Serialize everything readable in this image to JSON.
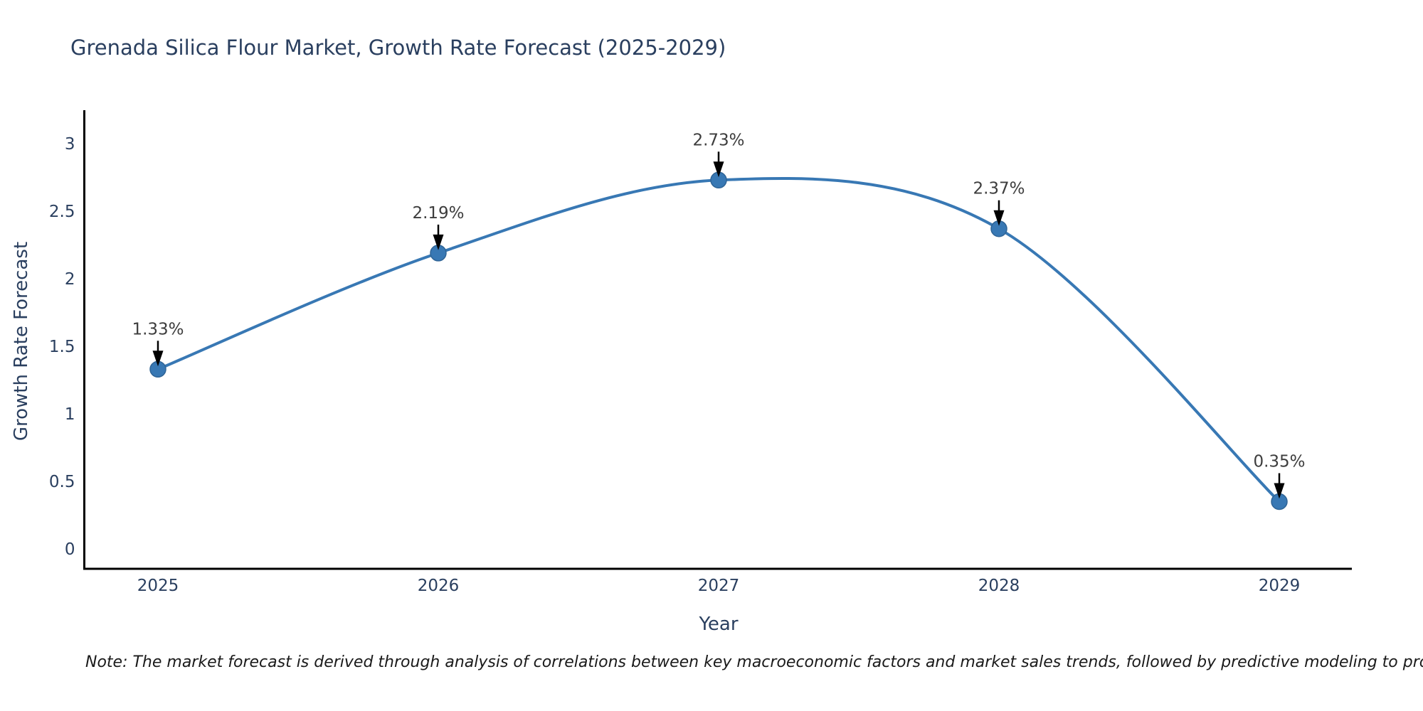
{
  "title": "Grenada Silica Flour Market, Growth Rate Forecast (2025-2029)",
  "note": "Note: The market forecast is derived through analysis of correlations between key macroeconomic factors and market sales trends, followed by predictive modeling to project future sales",
  "chart_data": {
    "type": "line",
    "title": "Grenada Silica Flour Market, Growth Rate Forecast (2025-2029)",
    "xlabel": "Year",
    "ylabel": "Growth Rate Forecast",
    "x": [
      2025,
      2026,
      2027,
      2028,
      2029
    ],
    "values": [
      1.33,
      2.19,
      2.73,
      2.37,
      0.35
    ],
    "point_labels": [
      "1.33%",
      "2.19%",
      "2.73%",
      "2.37%",
      "0.35%"
    ],
    "x_tick_values": [
      2025,
      2026,
      2027,
      2028,
      2029
    ],
    "x_tick_labels": [
      "2025",
      "2026",
      "2027",
      "2028",
      "2029"
    ],
    "y_tick_values": [
      0,
      0.5,
      1,
      1.5,
      2,
      2.5,
      3
    ],
    "y_tick_labels": [
      "0",
      "0.5",
      "1",
      "1.5",
      "2",
      "2.5",
      "3"
    ],
    "ylim": [
      -0.15,
      3.25
    ],
    "xlim": [
      2024.74,
      2029.26
    ],
    "grid": false,
    "legend": "none",
    "line_shape": "spline",
    "annotation_arrows": true,
    "colors": {
      "line": "#3878b4",
      "marker_fill": "#3878b4",
      "marker_edge": "#2f6496",
      "axis": "#000000",
      "tick_text": "#2a3f5f",
      "annotation_text": "#3d3d3d",
      "arrow": "#000000",
      "background": "#ffffff"
    }
  }
}
